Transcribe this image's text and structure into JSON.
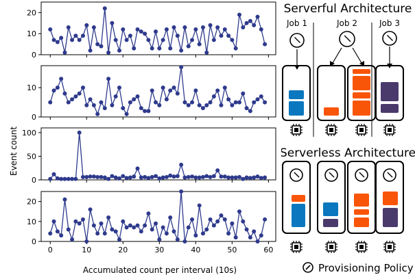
{
  "chart_data": [
    {
      "type": "line",
      "ylim": [
        0,
        25
      ],
      "yticks": [
        0,
        10,
        20
      ],
      "xlim": [
        -2.5,
        62
      ],
      "xticks": [
        0,
        10,
        20,
        30,
        40,
        50,
        60
      ],
      "color": "#2e3a8c",
      "x": [
        0,
        1,
        2,
        3,
        4,
        5,
        6,
        7,
        8,
        9,
        10,
        11,
        12,
        13,
        14,
        15,
        16,
        17,
        18,
        19,
        20,
        21,
        22,
        23,
        24,
        25,
        26,
        27,
        28,
        29,
        30,
        31,
        32,
        33,
        34,
        35,
        36,
        37,
        38,
        39,
        40,
        41,
        42,
        43,
        44,
        45,
        46,
        47,
        48,
        49,
        50,
        51,
        52,
        53,
        54,
        55,
        56,
        57,
        58,
        59
      ],
      "values": [
        12,
        7,
        6,
        8,
        1,
        13,
        7,
        9,
        7,
        9,
        14,
        2,
        13,
        5,
        4,
        22,
        1,
        15,
        7,
        2,
        12,
        7,
        9,
        3,
        12,
        11,
        10,
        7,
        3,
        11,
        3,
        7,
        12,
        3,
        13,
        9,
        2,
        13,
        4,
        7,
        12,
        5,
        13,
        1,
        14,
        7,
        13,
        9,
        12,
        9,
        7,
        3,
        19,
        13,
        15,
        16,
        14,
        18,
        12,
        5
      ]
    },
    {
      "type": "line",
      "ylim": [
        0,
        17.5
      ],
      "yticks": [
        0,
        10
      ],
      "xlim": [
        -2.5,
        62
      ],
      "xticks": [
        0,
        10,
        20,
        30,
        40,
        50,
        60
      ],
      "color": "#2e3a8c",
      "x": [
        0,
        1,
        2,
        3,
        4,
        5,
        6,
        7,
        8,
        9,
        10,
        11,
        12,
        13,
        14,
        15,
        16,
        17,
        18,
        19,
        20,
        21,
        22,
        23,
        24,
        25,
        26,
        27,
        28,
        29,
        30,
        31,
        32,
        33,
        34,
        35,
        36,
        37,
        38,
        39,
        40,
        41,
        42,
        43,
        44,
        45,
        46,
        47,
        48,
        49,
        50,
        51,
        52,
        53,
        54,
        55,
        56,
        57,
        58,
        59
      ],
      "values": [
        5,
        9,
        10,
        13,
        8,
        5,
        6,
        7,
        8,
        10,
        4,
        6,
        4,
        1,
        5,
        3,
        13,
        4,
        7,
        10,
        3,
        1,
        5,
        6,
        7,
        3,
        2,
        2,
        9,
        5,
        4,
        10,
        6,
        9,
        10,
        8,
        17,
        5,
        4,
        5,
        9,
        4,
        3,
        4,
        5,
        7,
        9,
        4,
        10,
        6,
        4,
        5,
        5,
        8,
        3,
        2,
        5,
        6,
        7,
        5
      ]
    },
    {
      "type": "line",
      "ylim": [
        0,
        110
      ],
      "yticks": [
        0,
        50,
        100
      ],
      "ylabel": "Event count",
      "xlim": [
        -2.5,
        62
      ],
      "xticks": [
        0,
        10,
        20,
        30,
        40,
        50,
        60
      ],
      "color": "#2e3a8c",
      "x": [
        0,
        1,
        2,
        3,
        4,
        5,
        6,
        7,
        8,
        9,
        10,
        11,
        12,
        13,
        14,
        15,
        16,
        17,
        18,
        19,
        20,
        21,
        22,
        23,
        24,
        25,
        26,
        27,
        28,
        29,
        30,
        31,
        32,
        33,
        34,
        35,
        36,
        37,
        38,
        39,
        40,
        41,
        42,
        43,
        44,
        45,
        46,
        47,
        48,
        49,
        50,
        51,
        52,
        53,
        54,
        55,
        56,
        57,
        58,
        59
      ],
      "values": [
        2,
        12,
        3,
        2,
        2,
        2,
        2,
        2,
        100,
        6,
        6,
        7,
        7,
        6,
        6,
        5,
        2,
        8,
        5,
        3,
        8,
        4,
        5,
        7,
        24,
        5,
        6,
        4,
        6,
        8,
        3,
        5,
        6,
        9,
        7,
        8,
        32,
        5,
        6,
        7,
        5,
        5,
        6,
        8,
        6,
        8,
        20,
        7,
        7,
        5,
        5,
        5,
        6,
        2,
        5,
        4,
        5,
        7,
        4,
        5
      ]
    },
    {
      "type": "line",
      "ylim": [
        0,
        25
      ],
      "yticks": [
        0,
        10,
        20
      ],
      "xlabel": "Accumulated count per interval (10s)",
      "xlim": [
        -2.5,
        62
      ],
      "xticks": [
        0,
        10,
        20,
        30,
        40,
        50,
        60
      ],
      "color": "#2e3a8c",
      "x": [
        0,
        1,
        2,
        3,
        4,
        5,
        6,
        7,
        8,
        9,
        10,
        11,
        12,
        13,
        14,
        15,
        16,
        17,
        18,
        19,
        20,
        21,
        22,
        23,
        24,
        25,
        26,
        27,
        28,
        29,
        30,
        31,
        32,
        33,
        34,
        35,
        36,
        37,
        38,
        39,
        40,
        41,
        42,
        43,
        44,
        45,
        46,
        47,
        48,
        49,
        50,
        51,
        52,
        53,
        54,
        55,
        56,
        57,
        58,
        59
      ],
      "values": [
        4,
        10,
        5,
        3,
        21,
        6,
        1,
        10,
        9,
        11,
        0,
        16,
        8,
        4,
        9,
        4,
        12,
        6,
        5,
        1,
        10,
        7,
        8,
        7,
        8,
        5,
        8,
        14,
        6,
        9,
        1,
        7,
        4,
        12,
        5,
        1,
        25,
        0,
        7,
        11,
        3,
        18,
        4,
        6,
        11,
        8,
        10,
        13,
        11,
        4,
        9,
        2,
        15,
        10,
        6,
        2,
        5,
        0,
        3,
        11
      ]
    }
  ],
  "diagram": {
    "serverful": {
      "title": "Serverful Architecture",
      "jobs": [
        "Job 1",
        "Job 2",
        "Job 3"
      ]
    },
    "serverless": {
      "title": "Serverless Architecture"
    },
    "legend": {
      "label": "Provisioning Policy"
    },
    "colors": {
      "blue": "#0b77be",
      "orange": "#f95508",
      "purple": "#4a3a6c"
    }
  }
}
